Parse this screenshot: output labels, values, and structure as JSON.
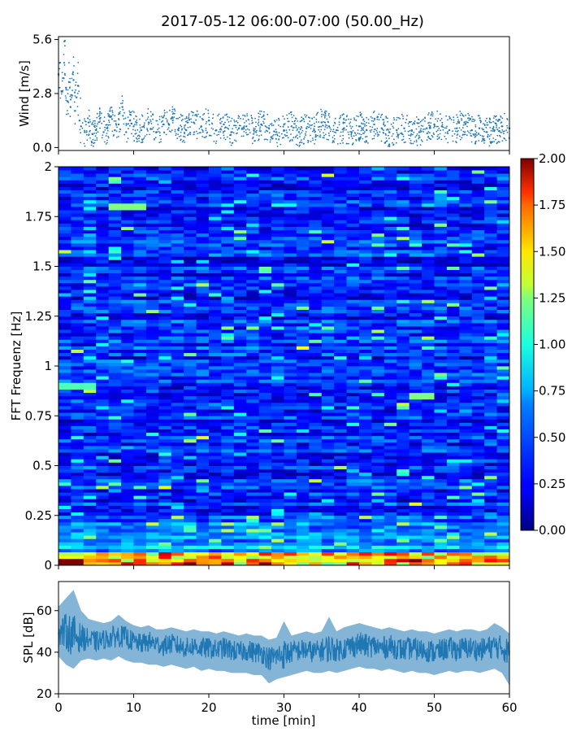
{
  "title": "2017-05-12 06:00-07:00 (50.00_Hz)",
  "colors": {
    "wind": "#1f77b4",
    "spl": "#1f77b4",
    "axes": "#000000"
  },
  "chart_data": [
    {
      "id": "wind",
      "type": "scatter",
      "ylabel": "Wind [m/s]",
      "xlim": [
        0,
        60
      ],
      "ylim": [
        -0.15,
        5.75
      ],
      "yticks": [
        0.0,
        2.8,
        5.6
      ],
      "ytick_labels": [
        "0.0",
        "2.8",
        "5.6"
      ],
      "xticks": [
        0,
        10,
        20,
        30,
        40,
        50,
        60
      ],
      "xtick_labels_visible": false,
      "x": [
        0.0,
        0.2,
        0.4,
        0.6,
        0.8,
        1.0,
        1.2,
        1.4,
        1.6,
        1.8,
        2.0,
        2.2,
        2.4,
        2.6,
        2.8,
        3.0,
        3.5,
        4.0,
        4.5,
        5.0,
        5.5,
        6.0,
        6.5,
        7.0,
        7.5,
        8.0,
        8.5,
        9.0,
        9.5,
        10.0,
        11.0,
        12.0,
        13.0,
        14.0,
        15.0,
        16.0,
        17.0,
        18.0,
        19.0,
        20.0,
        21.0,
        22.0,
        23.0,
        24.0,
        25.0,
        26.0,
        27.0,
        28.0,
        29.0,
        30.0,
        31.0,
        32.0,
        33.0,
        34.0,
        35.0,
        36.0,
        37.0,
        38.0,
        39.0,
        40.0,
        41.0,
        42.0,
        43.0,
        44.0,
        45.0,
        46.0,
        47.0,
        48.0,
        49.0,
        50.0,
        51.0,
        52.0,
        53.0,
        54.0,
        55.0,
        56.0,
        57.0,
        58.0,
        59.0,
        60.0
      ],
      "y": [
        3.8,
        4.4,
        2.9,
        3.6,
        5.5,
        3.1,
        2.4,
        3.4,
        2.1,
        2.7,
        3.5,
        1.9,
        2.6,
        3.2,
        1.4,
        1.1,
        0.8,
        1.3,
        0.7,
        0.9,
        1.5,
        0.8,
        1.0,
        1.6,
        0.9,
        1.2,
        2.1,
        0.8,
        1.4,
        1.1,
        0.9,
        1.3,
        0.8,
        1.2,
        1.5,
        1.0,
        0.9,
        1.3,
        1.1,
        1.4,
        0.9,
        1.2,
        0.8,
        1.0,
        1.1,
        0.9,
        1.2,
        1.0,
        0.8,
        0.9,
        1.1,
        0.8,
        1.0,
        0.9,
        1.3,
        1.1,
        0.9,
        1.0,
        0.8,
        1.1,
        0.9,
        1.2,
        1.0,
        0.8,
        0.9,
        1.0,
        0.9,
        0.8,
        1.0,
        1.2,
        1.1,
        0.9,
        1.0,
        1.3,
        0.9,
        1.0,
        0.8,
        0.9,
        1.1,
        1.0
      ]
    },
    {
      "id": "spectrogram",
      "type": "heatmap",
      "ylabel": "FFT Frequenz [Hz]",
      "xlim": [
        0,
        60
      ],
      "ylim": [
        0,
        2
      ],
      "yticks": [
        0,
        0.25,
        0.5,
        0.75,
        1,
        1.25,
        1.5,
        1.75,
        2
      ],
      "ytick_labels": [
        "0",
        "0.25",
        "0.5",
        "0.75",
        "1",
        "1.25",
        "1.5",
        "1.75",
        "2"
      ],
      "xticks": [
        0,
        10,
        20,
        30,
        40,
        50,
        60
      ],
      "xtick_labels_visible": false,
      "colormap": "jet",
      "value_range": [
        0,
        2
      ],
      "colorbar": {
        "ticks": [
          0.0,
          0.25,
          0.5,
          0.75,
          1.0,
          1.25,
          1.5,
          1.75,
          2.0
        ],
        "tick_labels": [
          "0.00",
          "0.25",
          "0.50",
          "0.75",
          "1.00",
          "1.25",
          "1.50",
          "1.75",
          "2.00"
        ]
      },
      "hotspots": [
        {
          "x_range": [
            0,
            4
          ],
          "y_range": [
            0,
            0.02
          ],
          "value": 2.0
        },
        {
          "x_range": [
            7,
            12
          ],
          "y_range": [
            1.79,
            1.81
          ],
          "value": 1.0
        },
        {
          "x_range": [
            0,
            5
          ],
          "y_range": [
            0.89,
            0.91
          ],
          "value": 0.9
        },
        {
          "x_range": [
            46,
            50
          ],
          "y_range": [
            0.84,
            0.86
          ],
          "value": 1.0
        }
      ]
    },
    {
      "id": "spl",
      "type": "line",
      "ylabel": "SPL [dB]",
      "xlabel": "time [min]",
      "xlim": [
        0,
        60
      ],
      "ylim": [
        20,
        74
      ],
      "yticks": [
        20,
        40,
        60
      ],
      "ytick_labels": [
        "20",
        "40",
        "60"
      ],
      "xticks": [
        0,
        10,
        20,
        30,
        40,
        50,
        60
      ],
      "xtick_labels": [
        "0",
        "10",
        "20",
        "30",
        "40",
        "50",
        "60"
      ],
      "x": [
        0,
        1,
        2,
        3,
        4,
        5,
        6,
        7,
        8,
        9,
        10,
        11,
        12,
        13,
        14,
        15,
        16,
        17,
        18,
        19,
        20,
        21,
        22,
        23,
        24,
        25,
        26,
        27,
        28,
        29,
        30,
        31,
        32,
        33,
        34,
        35,
        36,
        37,
        38,
        39,
        40,
        41,
        42,
        43,
        44,
        45,
        46,
        47,
        48,
        49,
        50,
        51,
        52,
        53,
        54,
        55,
        56,
        57,
        58,
        59,
        60
      ],
      "y": [
        49,
        50,
        48,
        47,
        46,
        45,
        46,
        47,
        48,
        47,
        45,
        44,
        45,
        44,
        43,
        44,
        43,
        42,
        43,
        42,
        42,
        41,
        42,
        41,
        40,
        41,
        40,
        40,
        37,
        38,
        39,
        40,
        41,
        41,
        40,
        41,
        42,
        41,
        42,
        43,
        44,
        43,
        43,
        42,
        43,
        42,
        41,
        42,
        41,
        41,
        40,
        41,
        42,
        41,
        42,
        42,
        41,
        42,
        43,
        42,
        40
      ],
      "y_low": [
        38,
        34,
        32,
        36,
        37,
        36,
        37,
        36,
        38,
        36,
        35,
        35,
        34,
        34,
        33,
        34,
        33,
        32,
        33,
        31,
        32,
        31,
        31,
        30,
        30,
        30,
        29,
        29,
        25,
        27,
        28,
        29,
        30,
        31,
        30,
        30,
        31,
        30,
        31,
        32,
        33,
        32,
        32,
        31,
        32,
        31,
        30,
        31,
        30,
        30,
        29,
        30,
        31,
        30,
        31,
        31,
        30,
        31,
        32,
        30,
        24
      ],
      "y_high": [
        62,
        66,
        70,
        60,
        56,
        55,
        54,
        55,
        58,
        55,
        53,
        52,
        53,
        51,
        51,
        52,
        51,
        50,
        51,
        50,
        50,
        49,
        50,
        49,
        48,
        49,
        48,
        48,
        46,
        47,
        55,
        48,
        49,
        50,
        49,
        50,
        57,
        50,
        52,
        53,
        54,
        53,
        52,
        51,
        52,
        51,
        50,
        51,
        50,
        50,
        49,
        50,
        51,
        50,
        51,
        51,
        50,
        51,
        54,
        52,
        49
      ]
    }
  ]
}
